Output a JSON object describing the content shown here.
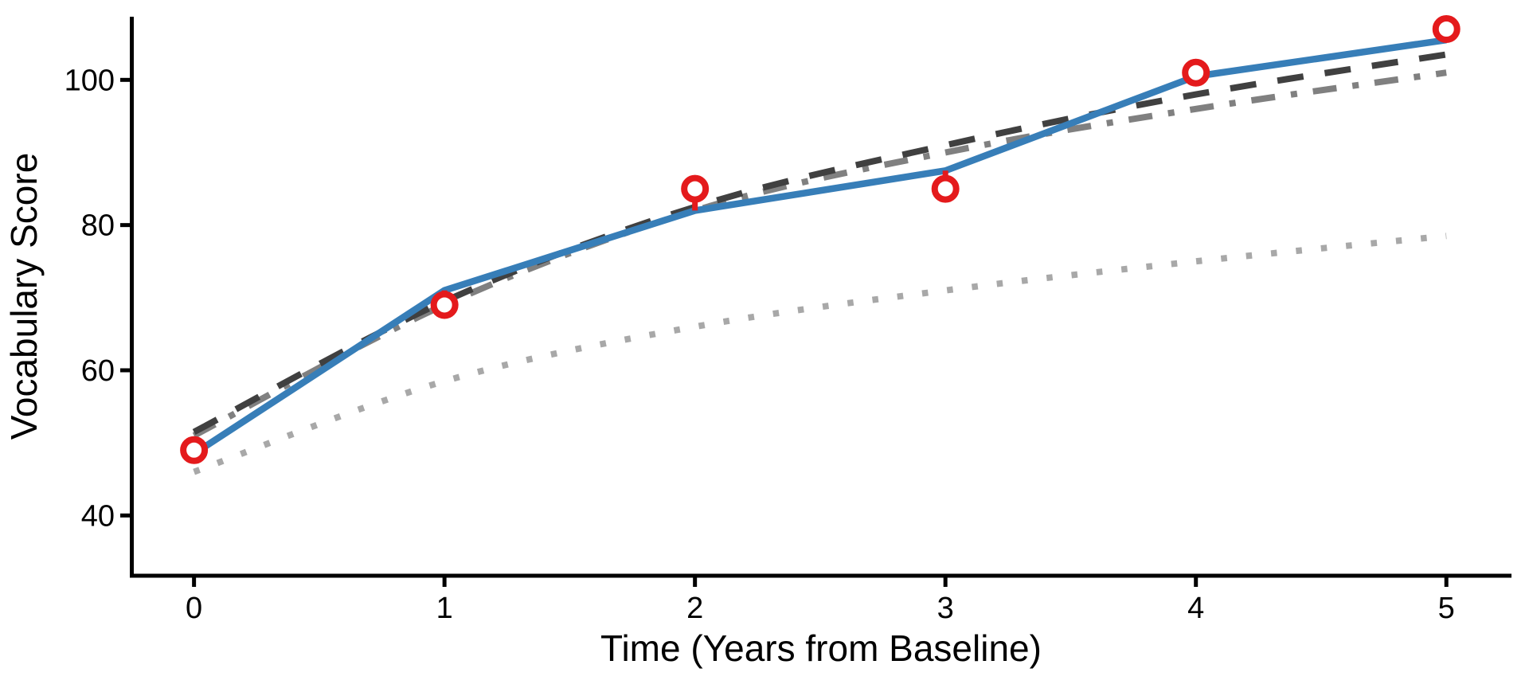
{
  "chart_data": {
    "type": "line",
    "title": "",
    "xlabel": "Time (Years from Baseline)",
    "ylabel": "Vocabulary Score",
    "x": [
      0,
      1,
      2,
      3,
      4,
      5
    ],
    "x_ticks": [
      0,
      1,
      2,
      3,
      4,
      5
    ],
    "x_tick_labels": [
      "0",
      "1",
      "2",
      "3",
      "4",
      "5"
    ],
    "y_ticks": [
      40,
      60,
      80,
      100
    ],
    "y_tick_labels": [
      "40",
      "60",
      "80",
      "100"
    ],
    "xlim": [
      -0.25,
      5.26
    ],
    "ylim": [
      31.7,
      108.7
    ],
    "grid": false,
    "legend": "none",
    "axis_color": "#000000",
    "text_color": "#000000",
    "series": [
      {
        "name": "population-average-dotted",
        "style": "dotted",
        "smooth": true,
        "color": "#a8a8a8",
        "values": [
          46,
          58.5,
          66,
          71,
          75,
          78.5
        ]
      },
      {
        "name": "model-fit-dashdot",
        "style": "dashdot",
        "smooth": true,
        "color": "#808080",
        "values": [
          51,
          69,
          82,
          90,
          96,
          101
        ]
      },
      {
        "name": "model-fit-dashed",
        "style": "dashed",
        "smooth": true,
        "color": "#404040",
        "values": [
          51.5,
          69.5,
          82.5,
          91,
          98,
          103.5
        ]
      },
      {
        "name": "subject-fit-solid",
        "style": "solid",
        "smooth": false,
        "color": "#377eb8",
        "values": [
          48.5,
          71,
          82,
          87.5,
          100.5,
          105.5
        ]
      },
      {
        "name": "observed-scores",
        "style": "points",
        "color": "#e41a1c",
        "marker_fill": "#ffffff",
        "residual_to": "subject-fit-solid",
        "values": [
          49,
          69,
          85,
          85,
          101,
          107
        ]
      }
    ]
  }
}
